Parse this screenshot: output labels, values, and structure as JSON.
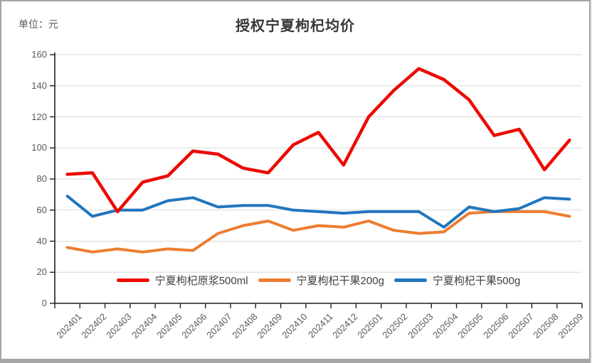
{
  "header": {
    "title": "授权宁夏枸杞均价",
    "unit_label": "单位：元"
  },
  "chart_data": {
    "type": "line",
    "title": "授权宁夏枸杞均价",
    "unit": "元",
    "xlabel": "",
    "ylabel": "",
    "ylim": [
      0,
      160
    ],
    "ytick_step": 20,
    "grid": "horizontal-only",
    "legend_position": "bottom-inside",
    "x_tick_rotation": -45,
    "categories": [
      "202401",
      "202402",
      "202403",
      "202404",
      "202405",
      "202406",
      "202407",
      "202408",
      "202409",
      "202410",
      "202411",
      "202412",
      "202501",
      "202502",
      "202503",
      "202504",
      "202505",
      "202506",
      "202507",
      "202508",
      "202509"
    ],
    "series": [
      {
        "name": "宁夏枸杞原浆500ml",
        "color": "#ec0a00",
        "values": [
          83,
          84,
          59,
          78,
          82,
          98,
          96,
          87,
          84,
          102,
          110,
          89,
          120,
          137,
          151,
          144,
          131,
          108,
          112,
          86,
          105
        ]
      },
      {
        "name": "宁夏枸杞干果200g",
        "color": "#ed7d31",
        "values": [
          36,
          33,
          35,
          33,
          35,
          34,
          45,
          50,
          53,
          47,
          50,
          49,
          53,
          47,
          45,
          46,
          58,
          59,
          59,
          59,
          56
        ]
      },
      {
        "name": "宁夏枸杞干果500g",
        "color": "#2176bd",
        "values": [
          69,
          56,
          60,
          60,
          66,
          68,
          62,
          63,
          63,
          60,
          59,
          58,
          59,
          59,
          59,
          49,
          62,
          59,
          61,
          68,
          67
        ]
      }
    ]
  },
  "style": {
    "gridline_color": "#d9d9d9",
    "axis_color": "#1f1f1f",
    "tick_label_color": "#595959",
    "title_color": "#383838"
  }
}
